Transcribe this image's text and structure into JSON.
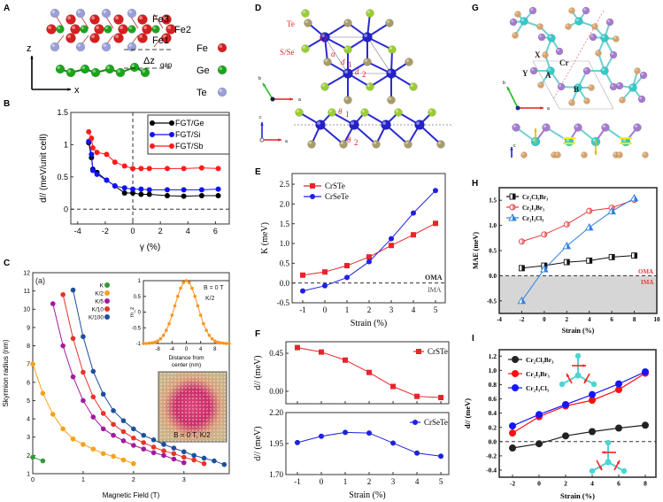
{
  "panel_letters": [
    "A",
    "B",
    "C",
    "D",
    "E",
    "F",
    "G",
    "H",
    "I"
  ],
  "panel_a": {
    "labels": {
      "fe3": "Fe3",
      "fe2": "Fe2",
      "fe1": "Fe1",
      "gap": "Δz",
      "gap_sub": "gap",
      "z_axis": "z",
      "x_axis": "x"
    },
    "legend": [
      {
        "name": "Fe",
        "color": "#d61f1f"
      },
      {
        "name": "Ge",
        "color": "#1aa51a"
      },
      {
        "name": "Te",
        "color": "#9b9fd8"
      }
    ]
  },
  "panel_d": {
    "labels": {
      "te": "Te",
      "sse": "S/Se",
      "cr": "Cr",
      "alpha": "α",
      "d1": "d",
      "d1_sub": "1",
      "d2": "d",
      "d2_sub": "2",
      "theta1": "θ",
      "theta1_sub": "1",
      "theta2": "θ",
      "theta2_sub": "2",
      "axis_a": "a",
      "axis_b": "b",
      "axis_c": "c"
    },
    "colors": {
      "cr": "#2323c8",
      "chalcogen": "#9acd32",
      "te": "#a89c6a"
    }
  },
  "panel_g": {
    "labels": {
      "x": "X",
      "y": "Y",
      "a": "A",
      "cr": "Cr",
      "b": "B",
      "axis_a": "a",
      "axis_b": "b",
      "axis_c": "c"
    },
    "colors": {
      "cr": "#35c9c9",
      "y": "#a57bd0",
      "x": "#d9a46a",
      "spin": "#ffee00"
    }
  },
  "chart_data": [
    {
      "id": "B",
      "type": "line",
      "title": "",
      "xlabel": "γ (%)",
      "ylabel": "d// (meV/unit cell)",
      "xlim": [
        -4.5,
        7.0
      ],
      "ylim": [
        -0.23,
        1.5
      ],
      "xticks": [
        -4,
        -2,
        0,
        2,
        4,
        6
      ],
      "xtick_labels": [
        "-4",
        "-2",
        "0",
        "2",
        "4",
        "6"
      ],
      "yticks": [
        0,
        0.5,
        1,
        1.5
      ],
      "ytick_labels": [
        "0",
        "0.5",
        "1",
        "1.5"
      ],
      "hlines": [
        0
      ],
      "vlines": [
        0
      ],
      "legend_placement": "top-right",
      "series": [
        {
          "name": "FGT/Ge",
          "color": "#000000",
          "marker": "circle",
          "x": [
            -3.2,
            -3.0,
            -2.9,
            -2.6,
            -1.9,
            -1.3,
            -0.6,
            0,
            0.6,
            1.2,
            2.5,
            3.7,
            5,
            6.2
          ],
          "y": [
            1.03,
            0.8,
            0.62,
            0.57,
            0.45,
            0.36,
            0.25,
            0.25,
            0.23,
            0.23,
            0.21,
            0.2,
            0.21,
            0.21
          ]
        },
        {
          "name": "FGT/Si",
          "color": "#1010ff",
          "marker": "circle",
          "x": [
            -3.2,
            -3.0,
            -2.9,
            -2.6,
            -1.9,
            -1.3,
            -0.6,
            0,
            0.6,
            1.2,
            2.5,
            3.7,
            5,
            6.2
          ],
          "y": [
            1.05,
            0.85,
            0.6,
            0.54,
            0.45,
            0.36,
            0.33,
            0.31,
            0.31,
            0.3,
            0.3,
            0.3,
            0.3,
            0.31
          ]
        },
        {
          "name": "FGT/Sb",
          "color": "#ff1a1a",
          "marker": "circle",
          "x": [
            -3.2,
            -3.0,
            -2.9,
            -2.6,
            -1.9,
            -1.3,
            -0.6,
            0,
            0.6,
            1.2,
            2.5,
            3.7,
            5,
            6.2
          ],
          "y": [
            1.2,
            1.1,
            0.95,
            0.88,
            0.85,
            0.73,
            0.67,
            0.63,
            0.63,
            0.63,
            0.63,
            0.63,
            0.64,
            0.63
          ]
        }
      ]
    },
    {
      "id": "C",
      "type": "line",
      "title": "",
      "xlabel": "Magnetic Field (T)",
      "ylabel": "Skyrmion radius (nm)",
      "xlim": [
        0,
        3.9
      ],
      "ylim": [
        1,
        12
      ],
      "xticks": [
        0,
        1,
        2,
        3
      ],
      "xtick_labels": [
        "0",
        "1",
        "2",
        "3"
      ],
      "yticks": [
        1,
        2,
        3,
        4,
        5,
        6,
        7,
        8,
        9,
        10,
        11,
        12
      ],
      "ytick_labels": [
        "1",
        "2",
        "3",
        "4",
        "5",
        "6",
        "7",
        "8",
        "9",
        "10",
        "11",
        "12"
      ],
      "annotations": [
        "(a)"
      ],
      "legend_placement": "top-center",
      "series": [
        {
          "name": "K",
          "color": "#2e9a3a",
          "marker": "circle",
          "x": [
            0,
            0.2
          ],
          "y": [
            1.9,
            1.7
          ]
        },
        {
          "name": "K/2",
          "color": "#f7a21b",
          "marker": "circle",
          "x": [
            0,
            0.2,
            0.4,
            0.6,
            0.8,
            1.0,
            1.2,
            1.4,
            1.6,
            1.8,
            2.0
          ],
          "y": [
            7.0,
            5.4,
            4.25,
            3.45,
            2.9,
            2.6,
            2.35,
            2.1,
            1.95,
            1.75,
            1.55
          ]
        },
        {
          "name": "K/5",
          "color": "#a21a9e",
          "marker": "circle",
          "x": [
            0.4,
            0.6,
            0.8,
            1.0,
            1.2,
            1.4,
            1.6,
            1.8,
            2.0,
            2.2,
            2.4,
            2.6,
            2.8,
            3.0
          ],
          "y": [
            10.3,
            8.0,
            6.3,
            5.0,
            4.1,
            3.45,
            3.1,
            2.8,
            2.55,
            2.35,
            2.15,
            2.0,
            1.8,
            1.6
          ]
        },
        {
          "name": "K/10",
          "color": "#e8332a",
          "marker": "circle",
          "x": [
            0.6,
            0.8,
            1.0,
            1.2,
            1.4,
            1.6,
            1.8,
            2.0,
            2.2,
            2.4,
            2.6,
            2.8,
            3.0,
            3.2,
            3.4
          ],
          "y": [
            10.8,
            8.4,
            6.55,
            5.2,
            4.3,
            3.7,
            3.3,
            2.95,
            2.7,
            2.45,
            2.25,
            2.1,
            1.9,
            1.75,
            1.55
          ]
        },
        {
          "name": "K/100",
          "color": "#1d4f9c",
          "marker": "circle",
          "x": [
            0.8,
            1.0,
            1.2,
            1.4,
            1.6,
            1.8,
            2.0,
            2.2,
            2.4,
            2.6,
            2.8,
            3.0,
            3.2,
            3.4,
            3.6,
            3.8
          ],
          "y": [
            11.05,
            8.5,
            6.6,
            5.35,
            4.45,
            3.9,
            3.45,
            3.1,
            2.85,
            2.6,
            2.4,
            2.2,
            2.0,
            1.85,
            1.7,
            1.5
          ]
        }
      ]
    },
    {
      "id": "C_inset",
      "type": "scatter",
      "title": "",
      "xlabel": "Distance from center (nm)",
      "ylabel": "m_z",
      "xlim": [
        -12,
        12
      ],
      "ylim": [
        -1,
        1
      ],
      "xticks": [
        -8,
        -4,
        0,
        4,
        8
      ],
      "xtick_labels": [
        "-8",
        "-4",
        "0",
        "4",
        "8"
      ],
      "yticks": [
        -1,
        -0.5,
        0,
        0.5,
        1
      ],
      "ytick_labels": [
        "-1",
        "-0.5",
        "0",
        "0.5",
        "1"
      ],
      "annotations": [
        "B = 0 T",
        "K/2"
      ],
      "image_caption": "B = 0 T, K/2",
      "series": [
        {
          "name": "K/2 profile",
          "color": "#f7941d",
          "marker": "circle",
          "line": true,
          "x": [
            -12,
            -11.2,
            -10.4,
            -9.6,
            -8.8,
            -8,
            -7.2,
            -6.4,
            -5.6,
            -4.8,
            -4,
            -3.2,
            -2.4,
            -1.6,
            -0.8,
            0,
            0.8,
            1.6,
            2.4,
            3.2,
            4,
            4.8,
            5.6,
            6.4,
            7.2,
            8,
            8.8,
            9.6,
            10.4,
            11.2,
            12
          ],
          "y": [
            -1.0,
            -1.0,
            -0.99,
            -0.98,
            -0.96,
            -0.92,
            -0.85,
            -0.74,
            -0.58,
            -0.37,
            -0.1,
            0.2,
            0.5,
            0.76,
            0.94,
            1.0,
            0.94,
            0.76,
            0.5,
            0.2,
            -0.1,
            -0.37,
            -0.58,
            -0.74,
            -0.85,
            -0.92,
            -0.96,
            -0.98,
            -0.99,
            -1.0,
            -1.0
          ]
        }
      ]
    },
    {
      "id": "E",
      "type": "line",
      "title": "",
      "xlabel": "Strain (%)",
      "ylabel": "K (meV)",
      "xlim": [
        -1.48,
        5.44
      ],
      "ylim": [
        -0.5,
        2.77
      ],
      "xticks": [
        -1,
        0,
        1,
        2,
        3,
        4,
        5
      ],
      "xtick_labels": [
        "-1",
        "0",
        "1",
        "2",
        "3",
        "4",
        "5"
      ],
      "yticks": [
        -0.5,
        0,
        0.5,
        1,
        1.5,
        2,
        2.5
      ],
      "ytick_labels": [
        "-0.5",
        "0.0",
        "0.5",
        "1.0",
        "1.5",
        "2.0",
        "2.5"
      ],
      "hlines": [
        0
      ],
      "annotations": [
        "OMA",
        "IMA"
      ],
      "legend_placement": "top-left",
      "series": [
        {
          "name": "CrSTe",
          "color": "#e8242a",
          "marker": "square",
          "x": [
            -1,
            0,
            1,
            2,
            3,
            4,
            5
          ],
          "y": [
            0.2,
            0.28,
            0.44,
            0.66,
            0.95,
            1.22,
            1.51
          ]
        },
        {
          "name": "CrSeTe",
          "color": "#2020e0",
          "marker": "circle",
          "x": [
            -1,
            0,
            1,
            2,
            3,
            4,
            5
          ],
          "y": [
            -0.2,
            -0.07,
            0.14,
            0.54,
            1.12,
            1.77,
            2.34
          ]
        }
      ]
    },
    {
      "id": "F_top",
      "type": "line",
      "title": "",
      "xlabel": "",
      "ylabel": "d// (meV)",
      "xlim": [
        -1.48,
        5.33
      ],
      "ylim": [
        -0.147,
        0.586
      ],
      "xticks": [
        -1,
        0,
        1,
        2,
        3,
        4,
        5
      ],
      "xtick_labels": [],
      "yticks": [
        0,
        0.45
      ],
      "ytick_labels": [
        "0.00",
        "0.45"
      ],
      "legend_placement": "top-right",
      "series": [
        {
          "name": "CrSTe",
          "color": "#e8242a",
          "marker": "square",
          "x": [
            -1,
            0,
            1,
            2,
            3,
            4,
            5
          ],
          "y": [
            0.517,
            0.464,
            0.369,
            0.223,
            0.057,
            -0.06,
            -0.074
          ]
        }
      ]
    },
    {
      "id": "F_bottom",
      "type": "line",
      "title": "",
      "xlabel": "Strain (%)",
      "ylabel": "d// (meV)",
      "xlim": [
        -1.48,
        5.33
      ],
      "ylim": [
        1.7,
        2.2
      ],
      "xticks": [
        -1,
        0,
        1,
        2,
        3,
        4,
        5
      ],
      "xtick_labels": [
        "-1",
        "0",
        "1",
        "2",
        "3",
        "4",
        "5"
      ],
      "yticks": [
        1.7,
        1.95,
        2.2
      ],
      "ytick_labels": [
        "1.70",
        "1.95",
        "2.20"
      ],
      "legend_placement": "top-right",
      "series": [
        {
          "name": "CrSeTe",
          "color": "#2020e0",
          "marker": "circle",
          "x": [
            -1,
            0,
            1,
            2,
            3,
            4,
            5
          ],
          "y": [
            1.958,
            2.009,
            2.04,
            2.035,
            1.954,
            1.873,
            1.848
          ]
        }
      ]
    },
    {
      "id": "H",
      "type": "line",
      "title": "",
      "xlabel": "Strain (%)",
      "ylabel": "MAE (meV)",
      "xlim": [
        -4,
        10
      ],
      "ylim": [
        -0.75,
        1.75
      ],
      "xticks": [
        -4,
        -2,
        0,
        2,
        4,
        6,
        8,
        10
      ],
      "xtick_labels": [
        "-4",
        "-2",
        "0",
        "2",
        "4",
        "6",
        "8",
        "10"
      ],
      "yticks": [
        -0.5,
        0,
        0.5,
        1,
        1.5
      ],
      "ytick_labels": [
        "-0.5",
        "0.0",
        "0.5",
        "1.0",
        "1.5"
      ],
      "hlines": [
        0
      ],
      "shade_below_zero": true,
      "annotations": [
        "OMA",
        "IMA"
      ],
      "legend_placement": "top-left",
      "series": [
        {
          "name": "Cr₂Cl₃Br₃",
          "color": "#111111",
          "marker": "half-square",
          "x": [
            -2,
            0,
            2,
            4,
            6,
            8
          ],
          "y": [
            0.15,
            0.2,
            0.27,
            0.3,
            0.37,
            0.4
          ]
        },
        {
          "name": "Cr₂I₃Br₃",
          "color": "#e8383d",
          "marker": "half-circle",
          "x": [
            -2,
            0,
            2,
            4,
            6,
            8
          ],
          "y": [
            0.68,
            0.82,
            1.02,
            1.29,
            1.35,
            1.51
          ]
        },
        {
          "name": "Cr₂I₃Cl₃",
          "color": "#2f7fe0",
          "marker": "half-triangle",
          "x": [
            -2,
            0,
            2,
            4,
            6,
            8
          ],
          "y": [
            -0.5,
            0.13,
            0.59,
            0.96,
            1.28,
            1.54
          ]
        }
      ]
    },
    {
      "id": "I",
      "type": "line",
      "title": "",
      "xlabel": "Strain (%)",
      "ylabel": "d// (meV)",
      "xlim": [
        -3,
        8.8
      ],
      "ylim": [
        -0.5,
        1.29
      ],
      "xticks": [
        -2,
        0,
        2,
        4,
        6,
        8
      ],
      "xtick_labels": [
        "-2",
        "0",
        "2",
        "4",
        "6",
        "8"
      ],
      "yticks": [
        -0.4,
        -0.2,
        0,
        0.2,
        0.4,
        0.6,
        0.8,
        1.0,
        1.2
      ],
      "ytick_labels": [
        "-0.4",
        "-0.2",
        "0.0",
        "0.2",
        "0.4",
        "0.6",
        "0.8",
        "1.0",
        "1.2"
      ],
      "hlines": [
        0
      ],
      "legend_placement": "top-left",
      "series": [
        {
          "name": "Cr₂Cl₃Br₃",
          "color": "#222222",
          "marker": "circle",
          "x": [
            -2,
            0,
            2,
            4,
            6,
            8
          ],
          "y": [
            -0.09,
            -0.03,
            0.08,
            0.14,
            0.19,
            0.23
          ]
        },
        {
          "name": "Cr₂I₃Br₃",
          "color": "#ff1010",
          "marker": "circle",
          "x": [
            -2,
            0,
            2,
            4,
            6,
            8
          ],
          "y": [
            0.12,
            0.35,
            0.5,
            0.58,
            0.73,
            0.96
          ]
        },
        {
          "name": "Cr₂I₃Cl₃",
          "color": "#1515ff",
          "marker": "circle",
          "x": [
            -2,
            0,
            2,
            4,
            6,
            8
          ],
          "y": [
            0.22,
            0.38,
            0.52,
            0.66,
            0.81,
            0.98
          ]
        }
      ]
    }
  ]
}
